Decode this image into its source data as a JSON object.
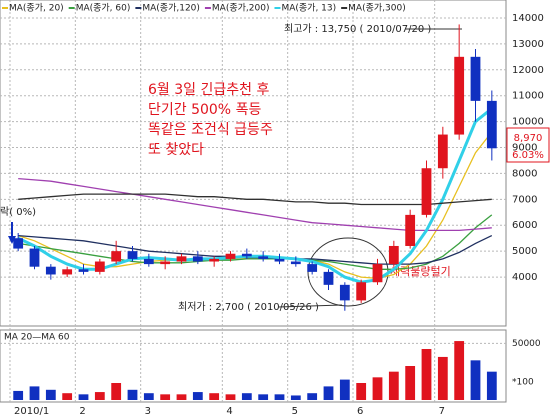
{
  "chart_data": {
    "type": "candlestick",
    "categories": [
      "2010/1",
      null,
      null,
      null,
      "2",
      null,
      null,
      null,
      "3",
      null,
      null,
      null,
      null,
      "4",
      null,
      null,
      null,
      "5",
      null,
      null,
      null,
      "6",
      null,
      null,
      null,
      null,
      "7",
      null,
      null,
      null
    ],
    "open": [
      5500,
      5100,
      4400,
      4100,
      4300,
      4200,
      4600,
      5000,
      4700,
      4500,
      4600,
      4800,
      4600,
      4700,
      4900,
      4800,
      4700,
      4600,
      4500,
      4200,
      3700,
      3100,
      3800,
      4500,
      5200,
      6400,
      8200,
      9500,
      12500,
      10800
    ],
    "high": [
      5700,
      5200,
      4500,
      4400,
      4500,
      4700,
      5400,
      5200,
      4900,
      4800,
      4900,
      5000,
      4800,
      5000,
      5100,
      5000,
      4900,
      4800,
      4600,
      4300,
      3800,
      3900,
      4700,
      5400,
      6600,
      8500,
      9800,
      13750,
      12800,
      11200
    ],
    "low": [
      5000,
      4300,
      3900,
      4000,
      4100,
      4100,
      4500,
      4600,
      4400,
      4300,
      4500,
      4500,
      4400,
      4600,
      4700,
      4600,
      4500,
      4400,
      4100,
      3500,
      2700,
      3000,
      3700,
      4400,
      5100,
      6300,
      7800,
      9300,
      10000,
      8500
    ],
    "close": [
      5100,
      4400,
      4100,
      4300,
      4200,
      4600,
      5000,
      4700,
      4500,
      4600,
      4800,
      4600,
      4700,
      4900,
      4800,
      4700,
      4600,
      4500,
      4200,
      3700,
      3100,
      3800,
      4500,
      5200,
      6400,
      8200,
      9500,
      12500,
      10800,
      8970
    ],
    "up_color": "#e0141e",
    "down_color": "#1030c0",
    "ylim": [
      2150,
      14500
    ],
    "yticks": [
      4000,
      5000,
      6000,
      7000,
      8000,
      9000,
      10000,
      11000,
      12000,
      13000,
      14000
    ],
    "grid": true,
    "series": [
      {
        "name": "MA(종가, 20)",
        "color": "#e8c020",
        "values": [
          5600,
          5400,
          5100,
          4800,
          4500,
          4400,
          4400,
          4500,
          4600,
          4650,
          4650,
          4650,
          4700,
          4700,
          4750,
          4750,
          4750,
          4700,
          4650,
          4500,
          4200,
          4000,
          3950,
          4100,
          4500,
          5200,
          6200,
          7500,
          8800,
          9600
        ]
      },
      {
        "name": "MA(종가, 60)",
        "color": "#3aa040",
        "values": [
          5300,
          5200,
          5100,
          5000,
          4900,
          4800,
          4700,
          4600,
          4550,
          4550,
          4550,
          4600,
          4650,
          4650,
          4700,
          4700,
          4700,
          4700,
          4650,
          4600,
          4500,
          4400,
          4300,
          4300,
          4350,
          4500,
          4800,
          5300,
          5900,
          6400
        ]
      },
      {
        "name": "MA(종가,120)",
        "color": "#203060",
        "values": [
          5600,
          5550,
          5500,
          5450,
          5400,
          5300,
          5200,
          5100,
          5000,
          4950,
          4900,
          4850,
          4800,
          4800,
          4750,
          4750,
          4700,
          4700,
          4700,
          4650,
          4600,
          4550,
          4500,
          4500,
          4500,
          4550,
          4700,
          4950,
          5300,
          5600
        ]
      },
      {
        "name": "MA(종가,200)",
        "color": "#a040b0",
        "values": [
          7800,
          7750,
          7700,
          7600,
          7500,
          7400,
          7300,
          7200,
          7100,
          7000,
          6900,
          6800,
          6700,
          6600,
          6500,
          6400,
          6300,
          6200,
          6100,
          6050,
          6000,
          5950,
          5900,
          5850,
          5800,
          5800,
          5800,
          5800,
          5850,
          5900
        ]
      },
      {
        "name": "MA(종가, 13)",
        "color": "#30d0e8",
        "values": [
          5500,
          5200,
          4800,
          4500,
          4300,
          4300,
          4500,
          4700,
          4750,
          4700,
          4650,
          4700,
          4700,
          4750,
          4800,
          4800,
          4750,
          4700,
          4600,
          4400,
          4000,
          3800,
          3900,
          4300,
          4900,
          5800,
          7000,
          8500,
          10000,
          10500
        ]
      },
      {
        "name": "MA(종가,300)",
        "color": "#303030",
        "values": [
          7000,
          7050,
          7100,
          7150,
          7200,
          7200,
          7200,
          7200,
          7200,
          7200,
          7150,
          7100,
          7100,
          7050,
          7000,
          7000,
          6950,
          6900,
          6900,
          6850,
          6850,
          6800,
          6800,
          6800,
          6800,
          6800,
          6850,
          6900,
          6950,
          7000
        ]
      }
    ],
    "volume": {
      "values": [
        8000,
        12000,
        9000,
        6000,
        5000,
        7000,
        15000,
        9000,
        6000,
        5000,
        5000,
        7000,
        6000,
        5000,
        6000,
        5000,
        5000,
        4000,
        6000,
        12000,
        18000,
        15000,
        20000,
        25000,
        30000,
        45000,
        38000,
        52000,
        35000,
        25000
      ],
      "ylim": [
        0,
        60000
      ],
      "yticks": [
        50000
      ],
      "unit": "*100",
      "legend": "MA 20—MA 60"
    },
    "high_label": "최고가 : 13,750 ( 2010/07/20 )",
    "low_label": "최저가 : 2,700 ( 2010/05/26 )",
    "annotation": [
      "6월 3일  긴급추천  후",
      "단기간 500% 폭등",
      "똑같은 조건식 급등주",
      "또 찾았다"
    ],
    "circle_label": "세력물량털기",
    "change_label": "락( 0%)",
    "current_price": "8,970",
    "current_change": "6.03%"
  }
}
